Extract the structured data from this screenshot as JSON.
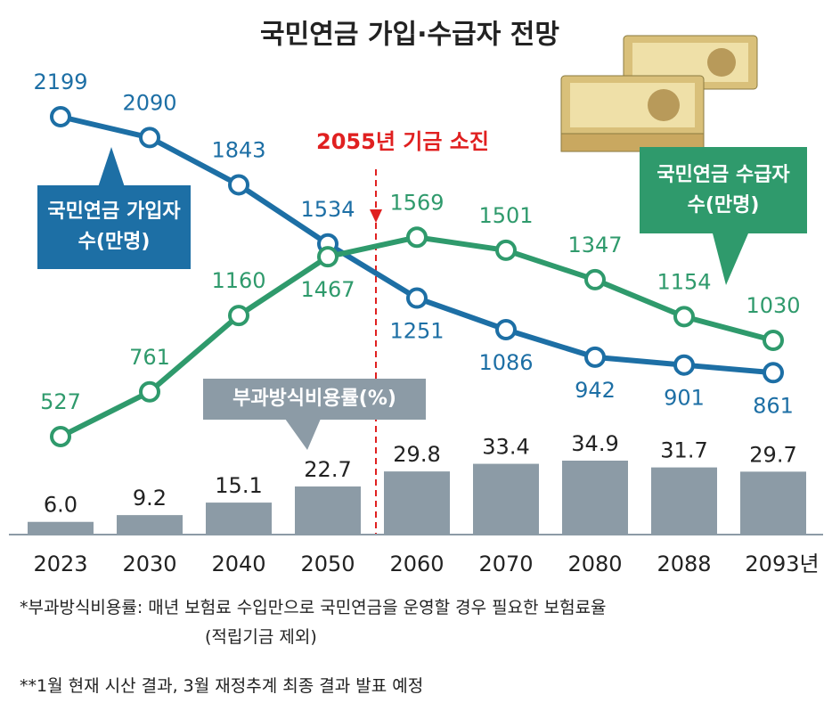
{
  "chart_data": {
    "type": "line",
    "title": "국민연금 가입·수급자 전망",
    "categories": [
      "2023",
      "2030",
      "2040",
      "2050",
      "2060",
      "2070",
      "2080",
      "2088",
      "2093년"
    ],
    "series": [
      {
        "name": "국민연금 가입자 수(만명)",
        "color": "#1d6fa5",
        "values": [
          2199,
          2090,
          1843,
          1534,
          1251,
          1086,
          942,
          901,
          861
        ]
      },
      {
        "name": "국민연금 수급자 수(만명)",
        "color": "#2f9a6c",
        "values": [
          527,
          761,
          1160,
          1467,
          1569,
          1501,
          1347,
          1154,
          1030
        ]
      },
      {
        "name": "부과방식비용률(%)",
        "type": "bar",
        "color": "#8c9ba6",
        "values": [
          6.0,
          9.2,
          15.1,
          22.7,
          29.8,
          33.4,
          34.9,
          31.7,
          29.7
        ],
        "value_labels": [
          "6.0",
          "9.2",
          "15.1",
          "22.7",
          "29.8",
          "33.4",
          "34.9",
          "31.7",
          "29.7"
        ]
      }
    ],
    "annotations": [
      "2055년 기금 소진"
    ],
    "footnotes": [
      "*부과방식비용률: 매년 보험료 수입만으로 국민연금을 운영할 경우 필요한 보험료율",
      "(적립기금 제외)",
      "**1월 현재 시산 결과, 3월 재정추계 최종 결과 발표 예정"
    ]
  }
}
